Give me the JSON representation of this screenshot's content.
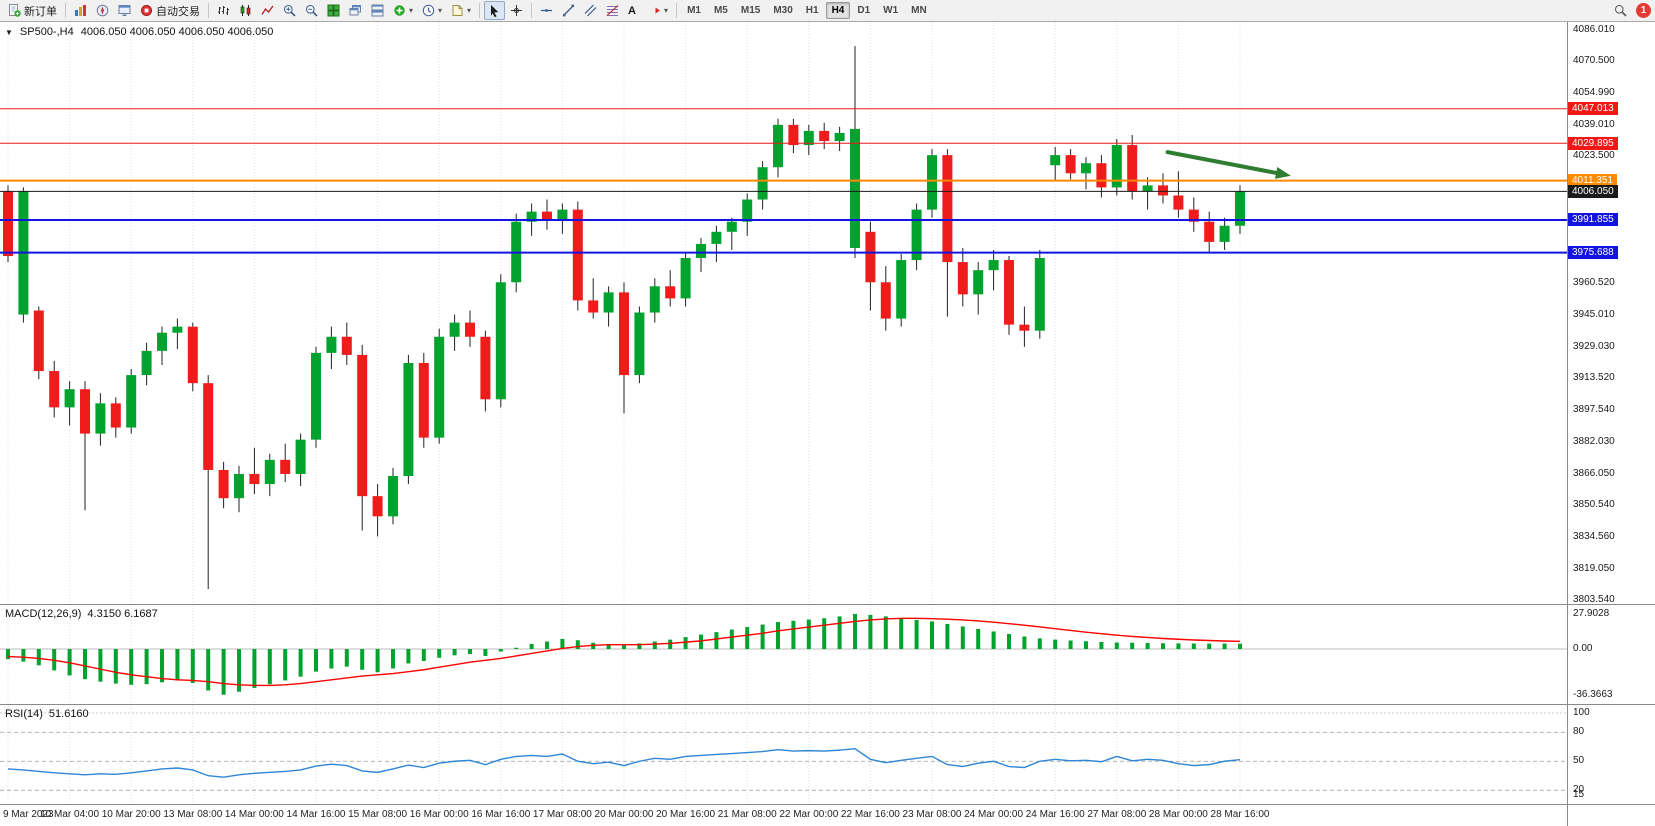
{
  "toolbar": {
    "new_order": "新订单",
    "autotrading": "自动交易",
    "timeframes": [
      "M1",
      "M5",
      "M15",
      "M30",
      "H1",
      "H4",
      "D1",
      "W1",
      "MN"
    ],
    "active_timeframe": "H4",
    "notification_count": "1"
  },
  "chart": {
    "symbol_period": "SP500-,H4",
    "ohlc_text": "4006.050 4006.050 4006.050 4006.050"
  },
  "colors": {
    "bull": "#00a32e",
    "bear": "#ef1c1c",
    "wick": "#222222",
    "grid": "#e2e2e2",
    "signal": "#ff0000",
    "rsi": "#2e86d7",
    "blue_line": "#1414e0",
    "red_line": "#f21818",
    "orange_line": "#ff8a00",
    "bid_line": "#1a1a1a",
    "arrow": "#2e7d32"
  },
  "chart_data": [
    {
      "type": "candlestick",
      "symbol": "SP500-",
      "timeframe": "H4",
      "ylim": [
        3803.54,
        4086.01
      ],
      "y_ticks": [
        "4086.010",
        "4070.500",
        "4054.990",
        "4039.010",
        "4023.500",
        "3960.520",
        "3945.010",
        "3929.030",
        "3913.520",
        "3897.540",
        "3882.030",
        "3866.050",
        "3850.540",
        "3834.560",
        "3819.050",
        "3803.540"
      ],
      "x_labels": [
        "9 Mar 2023",
        "10 Mar 04:00",
        "10 Mar 20:00",
        "13 Mar 08:00",
        "14 Mar 00:00",
        "14 Mar 16:00",
        "15 Mar 08:00",
        "16 Mar 00:00",
        "16 Mar 16:00",
        "17 Mar 08:00",
        "20 Mar 00:00",
        "20 Mar 16:00",
        "21 Mar 08:00",
        "22 Mar 00:00",
        "22 Mar 16:00",
        "23 Mar 08:00",
        "24 Mar 00:00",
        "24 Mar 16:00",
        "27 Mar 08:00",
        "28 Mar 00:00",
        "28 Mar 16:00"
      ],
      "hlines": [
        {
          "price": 4047.013,
          "label": "4047.013",
          "color": "#f21818",
          "width": 1
        },
        {
          "price": 4029.895,
          "label": "4029.895",
          "color": "#f21818",
          "width": 1
        },
        {
          "price": 4011.351,
          "label": "4011.351",
          "color": "#ff8a00",
          "width": 2
        },
        {
          "price": 4006.05,
          "label": "4006.050",
          "color": "#1a1a1a",
          "width": 1
        },
        {
          "price": 3991.855,
          "label": "3991.855",
          "color": "#1414e0",
          "width": 2
        },
        {
          "price": 3975.688,
          "label": "3975.688",
          "color": "#1414e0",
          "width": 2
        }
      ],
      "arrow": {
        "from": {
          "i": 75.3,
          "p": 4025.5
        },
        "to": {
          "i": 82.6,
          "p": 4014.8
        },
        "color": "#2e7d32"
      },
      "ohlc": [
        [
          4006,
          4009,
          3971,
          3974
        ],
        [
          3945,
          4008,
          3941,
          4006
        ],
        [
          3947,
          3949,
          3913,
          3917
        ],
        [
          3917,
          3922,
          3894,
          3899
        ],
        [
          3899,
          3912,
          3890,
          3908
        ],
        [
          3908,
          3912,
          3848,
          3886
        ],
        [
          3886,
          3906,
          3880,
          3901
        ],
        [
          3901,
          3904,
          3884,
          3889
        ],
        [
          3889,
          3918,
          3886,
          3915
        ],
        [
          3915,
          3931,
          3910,
          3927
        ],
        [
          3927,
          3939,
          3920,
          3936
        ],
        [
          3936,
          3943,
          3928,
          3939
        ],
        [
          3939,
          3941,
          3907,
          3911
        ],
        [
          3911,
          3915,
          3809,
          3868
        ],
        [
          3868,
          3872,
          3849,
          3854
        ],
        [
          3854,
          3870,
          3847,
          3866
        ],
        [
          3866,
          3879,
          3856,
          3861
        ],
        [
          3861,
          3876,
          3855,
          3873
        ],
        [
          3873,
          3881,
          3862,
          3866
        ],
        [
          3866,
          3886,
          3860,
          3883
        ],
        [
          3883,
          3929,
          3879,
          3926
        ],
        [
          3926,
          3939,
          3918,
          3934
        ],
        [
          3934,
          3941,
          3920,
          3925
        ],
        [
          3925,
          3930,
          3838,
          3855
        ],
        [
          3855,
          3861,
          3835,
          3845
        ],
        [
          3845,
          3869,
          3841,
          3865
        ],
        [
          3865,
          3925,
          3861,
          3921
        ],
        [
          3921,
          3926,
          3879,
          3884
        ],
        [
          3884,
          3938,
          3881,
          3934
        ],
        [
          3934,
          3945,
          3927,
          3941
        ],
        [
          3941,
          3947,
          3929,
          3934
        ],
        [
          3934,
          3937,
          3897,
          3903
        ],
        [
          3903,
          3965,
          3899,
          3961
        ],
        [
          3961,
          3995,
          3956,
          3991
        ],
        [
          3991,
          4000,
          3984,
          3996
        ],
        [
          3996,
          4002,
          3987,
          3992
        ],
        [
          3992,
          4000,
          3985,
          3997
        ],
        [
          3997,
          4001,
          3947,
          3952
        ],
        [
          3952,
          3963,
          3943,
          3946
        ],
        [
          3946,
          3959,
          3939,
          3956
        ],
        [
          3956,
          3961,
          3896,
          3915
        ],
        [
          3915,
          3949,
          3911,
          3946
        ],
        [
          3946,
          3963,
          3941,
          3959
        ],
        [
          3959,
          3967,
          3949,
          3953
        ],
        [
          3953,
          3976,
          3949,
          3973
        ],
        [
          3973,
          3983,
          3966,
          3980
        ],
        [
          3980,
          3989,
          3971,
          3986
        ],
        [
          3986,
          3993,
          3977,
          3991
        ],
        [
          3991,
          4005,
          3984,
          4002
        ],
        [
          4002,
          4021,
          3997,
          4018
        ],
        [
          4018,
          4042,
          4013,
          4039
        ],
        [
          4039,
          4042,
          4025,
          4029
        ],
        [
          4029,
          4039,
          4024,
          4036
        ],
        [
          4036,
          4040,
          4027,
          4031
        ],
        [
          4031,
          4038,
          4026,
          4035
        ],
        [
          3978,
          4078,
          3973,
          4037
        ],
        [
          3986,
          3991,
          3947,
          3961
        ],
        [
          3961,
          3969,
          3937,
          3943
        ],
        [
          3943,
          3975,
          3939,
          3972
        ],
        [
          3972,
          4000,
          3967,
          3997
        ],
        [
          3997,
          4027,
          3993,
          4024
        ],
        [
          4024,
          4027,
          3944,
          3971
        ],
        [
          3971,
          3978,
          3949,
          3955
        ],
        [
          3955,
          3971,
          3945,
          3967
        ],
        [
          3967,
          3977,
          3957,
          3972
        ],
        [
          3972,
          3974,
          3935,
          3940
        ],
        [
          3940,
          3949,
          3929,
          3937
        ],
        [
          3937,
          3977,
          3933,
          3973
        ],
        [
          4019,
          4028,
          4011,
          4024
        ],
        [
          4024,
          4027,
          4012,
          4015
        ],
        [
          4015,
          4023,
          4007,
          4020
        ],
        [
          4020,
          4024,
          4003,
          4008
        ],
        [
          4008,
          4032,
          4004,
          4029
        ],
        [
          4029,
          4034,
          4002,
          4006
        ],
        [
          4006,
          4013,
          3997,
          4009
        ],
        [
          4009,
          4015,
          4000,
          4004
        ],
        [
          4004,
          4016,
          3993,
          3997
        ],
        [
          3997,
          4003,
          3986,
          3991
        ],
        [
          3991,
          3996,
          3976,
          3981
        ],
        [
          3981,
          3993,
          3977,
          3989
        ],
        [
          3989,
          4009,
          3985,
          4006
        ]
      ]
    },
    {
      "type": "bar",
      "name": "MACD",
      "label": "MACD(12,26,9)",
      "values_text": "4.3150 6.1687",
      "y_ticks": [
        "27.9028",
        "0.00",
        "-36.3663"
      ],
      "ylim": [
        -39,
        29.5
      ],
      "histogram": [
        -8,
        -10,
        -13,
        -17,
        -21,
        -24,
        -26,
        -27.5,
        -28.5,
        -28,
        -26.5,
        -25,
        -27,
        -33,
        -36.4,
        -34,
        -31,
        -28,
        -25,
        -22,
        -18,
        -15.5,
        -14,
        -16.5,
        -18.5,
        -15.5,
        -11.5,
        -9.5,
        -7,
        -5,
        -4,
        -5.5,
        -2,
        1,
        4,
        6,
        8,
        7,
        5,
        4,
        3,
        4.5,
        6,
        7.5,
        9.5,
        11.5,
        13.5,
        15.5,
        17.5,
        19.5,
        21.5,
        22.5,
        23.5,
        24.5,
        26,
        27.9,
        27.2,
        26,
        24.5,
        23.2,
        22,
        20,
        18,
        16,
        14,
        12,
        10,
        8.5,
        7.5,
        6.8,
        6.2,
        5.6,
        5.2,
        5,
        4.8,
        4.6,
        4.5,
        4.4,
        4.35,
        4.32,
        4.315
      ],
      "signal": [
        -6,
        -6.5,
        -7.5,
        -9,
        -11,
        -13.5,
        -16,
        -18.5,
        -20.5,
        -22,
        -23.5,
        -24.5,
        -25,
        -26,
        -27.5,
        -28.5,
        -29,
        -29,
        -28.5,
        -27.5,
        -26,
        -24.5,
        -23,
        -21.5,
        -20.5,
        -19.5,
        -18,
        -16.5,
        -14.5,
        -12.5,
        -10.5,
        -9,
        -7.5,
        -5.5,
        -3.5,
        -1.5,
        0.5,
        2,
        3,
        3.5,
        3.5,
        3.5,
        4,
        4.5,
        5.5,
        6.5,
        8,
        9.5,
        11,
        12.5,
        14.5,
        16,
        17.5,
        19,
        20.5,
        22,
        23.2,
        24,
        24.5,
        24.5,
        24.2,
        23.8,
        23.2,
        22.4,
        21.4,
        20.2,
        19,
        17.6,
        16.2,
        14.8,
        13.4,
        12.2,
        11,
        10,
        9.2,
        8.4,
        7.8,
        7.2,
        6.8,
        6.4,
        6.1687
      ]
    },
    {
      "type": "line",
      "name": "RSI",
      "label": "RSI(14)",
      "value_text": "51.6160",
      "y_ticks": [
        "100",
        "80",
        "50",
        "20",
        "15"
      ],
      "levels": [
        80,
        50,
        20
      ],
      "ylim": [
        13,
        102
      ],
      "values": [
        42,
        41,
        39.5,
        38,
        37,
        36,
        37,
        36.5,
        38,
        40,
        42,
        43,
        41,
        35,
        33.5,
        36,
        37.5,
        38.5,
        39.5,
        41,
        45,
        47,
        45.5,
        40,
        38.5,
        42,
        46,
        43.5,
        48,
        50,
        51,
        46.5,
        52,
        55,
        56,
        55,
        57.5,
        50,
        47.5,
        49,
        45.5,
        50,
        53,
        52,
        55,
        56,
        57,
        58,
        59,
        60,
        62,
        60.5,
        61,
        60.5,
        61.5,
        63,
        52,
        48.5,
        51,
        53,
        55,
        46.5,
        44.5,
        48,
        50,
        44.5,
        43.5,
        50,
        52,
        50.5,
        51,
        49.5,
        55,
        50.5,
        52,
        51,
        47.5,
        45.5,
        46.5,
        50,
        51.616
      ]
    }
  ]
}
